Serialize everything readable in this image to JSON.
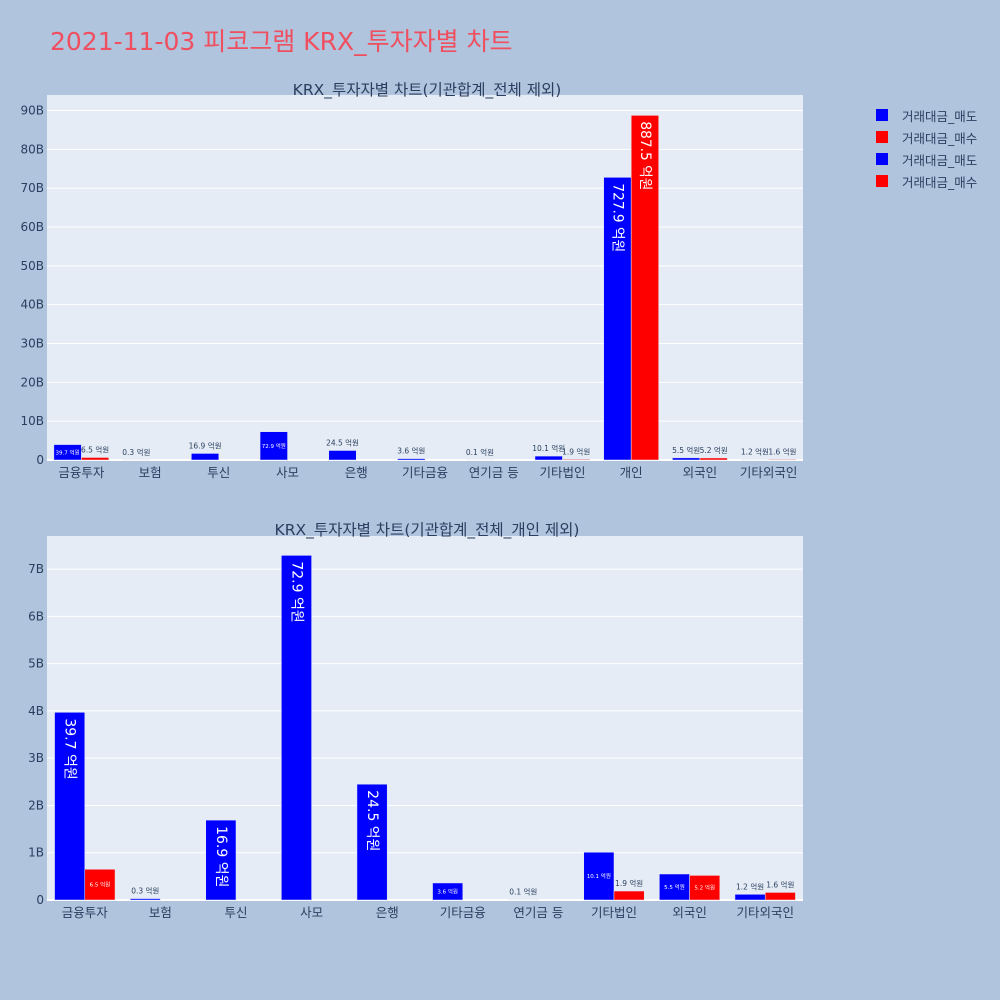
{
  "page_title": "2021-11-03 피코그램 KRX_투자자별 차트",
  "legend": [
    {
      "label": "거래대금_매도",
      "color": "#0000ff"
    },
    {
      "label": "거래대금_매수",
      "color": "#ff0000"
    },
    {
      "label": "거래대금_매도",
      "color": "#0000ff"
    },
    {
      "label": "거래대금_매수",
      "color": "#ff0000"
    }
  ],
  "chart_data": [
    {
      "type": "bar",
      "title": "KRX_투자자별 차트(기관합계_전체 제외)",
      "categories": [
        "금융투자",
        "보험",
        "투신",
        "사모",
        "은행",
        "기타금융",
        "연기금 등",
        "기타법인",
        "개인",
        "외국인",
        "기타외국인"
      ],
      "ylim": [
        0,
        94
      ],
      "yticks": [
        0,
        10,
        20,
        30,
        40,
        50,
        60,
        70,
        80,
        90
      ],
      "ytick_labels": [
        "0",
        "10B",
        "20B",
        "30B",
        "40B",
        "50B",
        "60B",
        "70B",
        "80B",
        "90B"
      ],
      "series": [
        {
          "name": "거래대금_매도",
          "color": "#0000ff",
          "values": [
            3.97,
            0.03,
            1.69,
            7.29,
            2.45,
            0.36,
            0.01,
            1.01,
            72.79,
            0.55,
            0.12
          ],
          "labels": [
            "39.7 억원",
            "0.3 억원",
            "16.9 억원",
            "72.9 억원",
            "24.5 억원",
            "3.6 억원",
            "0.1 억원",
            "10.1 억원",
            "727.9 억원",
            "5.5 억원",
            "1.2 억원"
          ]
        },
        {
          "name": "거래대금_매수",
          "color": "#ff0000",
          "values": [
            0.65,
            0,
            0,
            0,
            0,
            0,
            0,
            0.19,
            88.75,
            0.52,
            0.16
          ],
          "labels": [
            "6.5 억원",
            "",
            "",
            "",
            "",
            "",
            "",
            "1.9 억원",
            "887.5 억원",
            "5.2 억원",
            "1.6 억원"
          ]
        }
      ],
      "grid": true
    },
    {
      "type": "bar",
      "title": "KRX_투자자별 차트(기관합계_전체_개인 제외)",
      "categories": [
        "금융투자",
        "보험",
        "투신",
        "사모",
        "은행",
        "기타금융",
        "연기금 등",
        "기타법인",
        "외국인",
        "기타외국인"
      ],
      "ylim": [
        0,
        7.7
      ],
      "yticks": [
        0,
        1,
        2,
        3,
        4,
        5,
        6,
        7
      ],
      "ytick_labels": [
        "0",
        "1B",
        "2B",
        "3B",
        "4B",
        "5B",
        "6B",
        "7B"
      ],
      "series": [
        {
          "name": "거래대금_매도",
          "color": "#0000ff",
          "values": [
            3.97,
            0.03,
            1.69,
            7.29,
            2.45,
            0.36,
            0.01,
            1.01,
            0.55,
            0.12
          ],
          "labels": [
            "39.7 억원",
            "0.3 억원",
            "16.9 억원",
            "72.9 억원",
            "24.5 억원",
            "3.6 억원",
            "0.1 억원",
            "10.1 억원",
            "5.5 억원",
            "1.2 억원"
          ]
        },
        {
          "name": "거래대금_매수",
          "color": "#ff0000",
          "values": [
            0.65,
            0,
            0,
            0,
            0,
            0,
            0,
            0.19,
            0.52,
            0.16
          ],
          "labels": [
            "6.5 억원",
            "",
            "",
            "",
            "",
            "",
            "",
            "1.9 억원",
            "5.2 억원",
            "1.6 억원"
          ]
        }
      ],
      "grid": true
    }
  ]
}
